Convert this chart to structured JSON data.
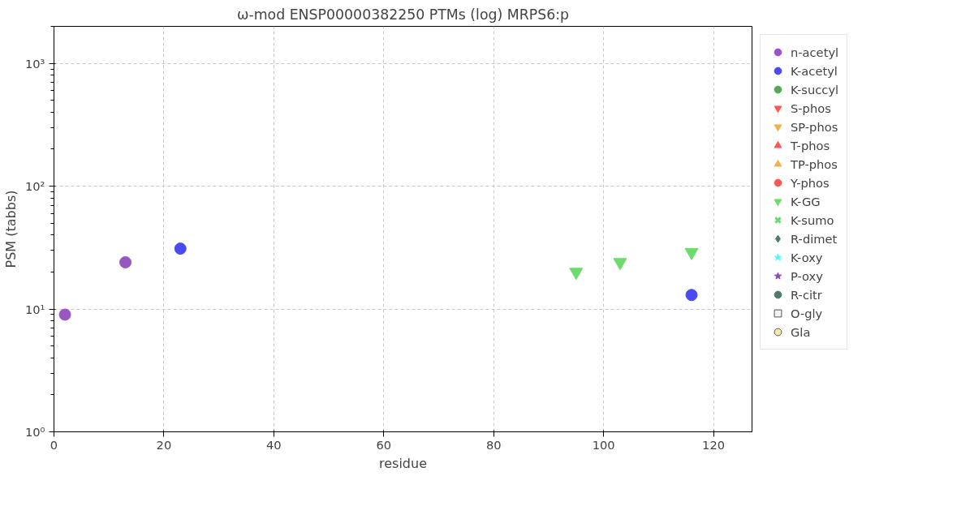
{
  "chart_data": {
    "type": "scatter",
    "title": "ω-mod ENSP00000382250 PTMs (log) MRPS6:p",
    "xlabel": "residue",
    "ylabel": "PSM (tabbs)",
    "xlim": [
      0,
      127
    ],
    "xticks": [
      0,
      20,
      40,
      60,
      80,
      100,
      120
    ],
    "ylim": [
      1,
      2000
    ],
    "yticks": [
      {
        "value": 1,
        "label": "10⁰"
      },
      {
        "value": 10,
        "label": "10¹"
      },
      {
        "value": 100,
        "label": "10²"
      },
      {
        "value": 1000,
        "label": "10³"
      }
    ],
    "log": "y",
    "grid": true,
    "legend": "right",
    "series": [
      {
        "name": "n-acetyl",
        "color": "#9955c4",
        "marker": "circle",
        "x": [
          2,
          13
        ],
        "values": [
          9,
          24
        ]
      },
      {
        "name": "K-acetyl",
        "color": "#4a4af5",
        "marker": "circle",
        "x": [
          23,
          116
        ],
        "values": [
          31,
          13
        ]
      },
      {
        "name": "K-succyl",
        "color": "#5aa55a",
        "marker": "circle"
      },
      {
        "name": "S-phos",
        "color": "#ff5555",
        "marker": "triangle_down"
      },
      {
        "name": "SP-phos",
        "color": "#f0b050",
        "marker": "triangle_down"
      },
      {
        "name": "T-phos",
        "color": "#ff5555",
        "marker": "triangle"
      },
      {
        "name": "TP-phos",
        "color": "#f0b050",
        "marker": "triangle"
      },
      {
        "name": "Y-phos",
        "color": "#ff5555",
        "marker": "circle"
      },
      {
        "name": "K-GG",
        "color": "#6ddb6d",
        "marker": "triangle_down",
        "x": [
          95,
          103,
          116
        ],
        "values": [
          20,
          24,
          29
        ]
      },
      {
        "name": "K-sumo",
        "color": "#6ddb6d",
        "marker": "cross"
      },
      {
        "name": "R-dimet",
        "color": "#4f7a6a",
        "marker": "diamond"
      },
      {
        "name": "K-oxy",
        "color": "#55f5f5",
        "marker": "star"
      },
      {
        "name": "P-oxy",
        "color": "#8e44ad",
        "marker": "star"
      },
      {
        "name": "R-citr",
        "color": "#4f7a6a",
        "marker": "dot"
      },
      {
        "name": "O-gly",
        "color": "#f2f2f2",
        "marker": "square"
      },
      {
        "name": "Gla",
        "color": "#f8e8a8",
        "marker": "circle"
      }
    ]
  }
}
